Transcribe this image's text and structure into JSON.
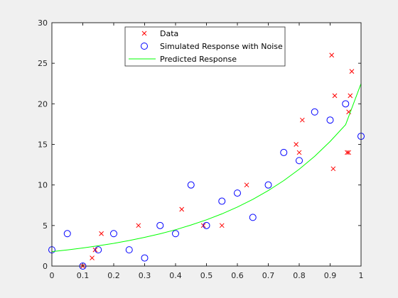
{
  "chart_data": {
    "type": "scatter",
    "xlim": [
      0,
      1
    ],
    "ylim": [
      0,
      30
    ],
    "x_ticks": [
      0,
      0.1,
      0.2,
      0.3,
      0.4,
      0.5,
      0.6,
      0.7,
      0.8,
      0.9,
      1
    ],
    "x_tick_labels": [
      "0",
      "0.1",
      "0.2",
      "0.3",
      "0.4",
      "0.5",
      "0.6",
      "0.7",
      "0.8",
      "0.9",
      "1"
    ],
    "y_ticks": [
      0,
      5,
      10,
      15,
      20,
      25,
      30
    ],
    "y_tick_labels": [
      "0",
      "5",
      "10",
      "15",
      "20",
      "25",
      "30"
    ],
    "grid": false,
    "legend_position": "top-center",
    "series": [
      {
        "name": "Data",
        "marker": "x",
        "color": "#ff0000",
        "points": [
          [
            0.1,
            0
          ],
          [
            0.13,
            1
          ],
          [
            0.14,
            2
          ],
          [
            0.16,
            4
          ],
          [
            0.28,
            5
          ],
          [
            0.42,
            7
          ],
          [
            0.49,
            5
          ],
          [
            0.55,
            5
          ],
          [
            0.63,
            10
          ],
          [
            0.79,
            15
          ],
          [
            0.8,
            14
          ],
          [
            0.81,
            18
          ],
          [
            0.905,
            26
          ],
          [
            0.91,
            12
          ],
          [
            0.915,
            21
          ],
          [
            0.955,
            14
          ],
          [
            0.96,
            14
          ],
          [
            0.96,
            19
          ],
          [
            0.965,
            21
          ],
          [
            0.97,
            24
          ]
        ]
      },
      {
        "name": "Simulated Response with Noise",
        "marker": "o",
        "color": "#0000ff",
        "points": [
          [
            0,
            2
          ],
          [
            0.05,
            4
          ],
          [
            0.1,
            0
          ],
          [
            0.15,
            2
          ],
          [
            0.2,
            4
          ],
          [
            0.25,
            2
          ],
          [
            0.3,
            1
          ],
          [
            0.35,
            5
          ],
          [
            0.4,
            4
          ],
          [
            0.45,
            10
          ],
          [
            0.5,
            5
          ],
          [
            0.55,
            8
          ],
          [
            0.6,
            9
          ],
          [
            0.65,
            6
          ],
          [
            0.7,
            10
          ],
          [
            0.75,
            14
          ],
          [
            0.8,
            13
          ],
          [
            0.85,
            19
          ],
          [
            0.9,
            18
          ],
          [
            0.95,
            20
          ],
          [
            1.0,
            16
          ]
        ]
      },
      {
        "name": "Predicted Response",
        "marker": "line",
        "color": "#00ff00",
        "points": [
          [
            0,
            1.78
          ],
          [
            0.05,
            1.99
          ],
          [
            0.1,
            2.23
          ],
          [
            0.15,
            2.5
          ],
          [
            0.2,
            2.8
          ],
          [
            0.25,
            3.15
          ],
          [
            0.3,
            3.54
          ],
          [
            0.35,
            3.98
          ],
          [
            0.4,
            4.48
          ],
          [
            0.45,
            5.06
          ],
          [
            0.5,
            5.7
          ],
          [
            0.55,
            6.44
          ],
          [
            0.6,
            7.28
          ],
          [
            0.65,
            8.23
          ],
          [
            0.7,
            9.31
          ],
          [
            0.75,
            10.54
          ],
          [
            0.8,
            11.94
          ],
          [
            0.85,
            13.54
          ],
          [
            0.9,
            15.36
          ],
          [
            0.95,
            17.43
          ],
          [
            1.0,
            22.5
          ]
        ]
      }
    ]
  }
}
